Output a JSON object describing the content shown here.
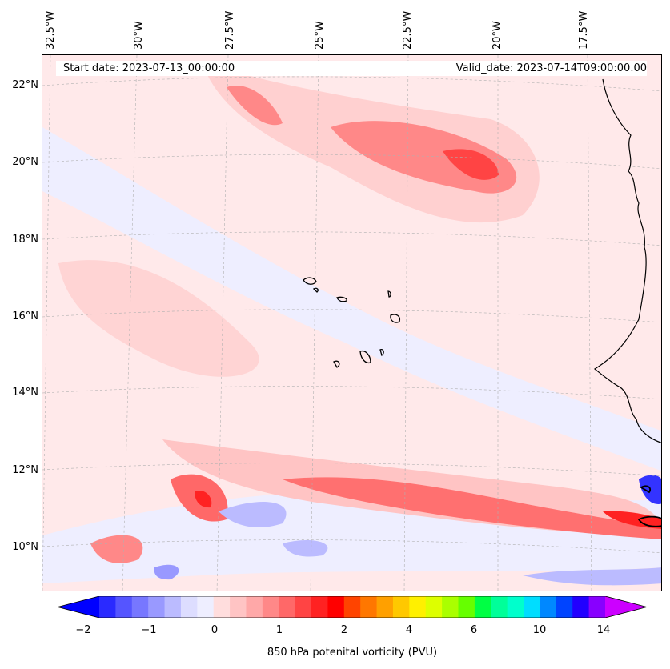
{
  "map": {
    "start_date": "Start date: 2023-07-13_00:00:00",
    "valid_date": "Valid_date: 2023-07-14T09:00:00.00",
    "lon_labels": [
      "32.5°W",
      "30°W",
      "27.5°W",
      "25°W",
      "22.5°W",
      "20°W",
      "17.5°W"
    ],
    "lat_labels": [
      "22°N",
      "20°N",
      "18°N",
      "16°N",
      "14°N",
      "12°N",
      "10°N"
    ],
    "region": "Cape Verde / West African coast"
  },
  "colorbar": {
    "label": "850 hPa potenital vorticity (PVU)",
    "ticks": [
      "−2",
      "−1",
      "0",
      "1",
      "2",
      "4",
      "6",
      "10",
      "14"
    ],
    "colors": [
      "#0000ff",
      "#2a2aff",
      "#5555ff",
      "#7777ff",
      "#9999ff",
      "#bbbbff",
      "#ddddff",
      "#eeeeff",
      "#ffdddd",
      "#ffc4c4",
      "#ffa8a8",
      "#ff8888",
      "#ff6868",
      "#ff4444",
      "#ff2222",
      "#ff0000",
      "#ff4400",
      "#ff7700",
      "#ffa000",
      "#ffc800",
      "#fff000",
      "#ddff00",
      "#aaff00",
      "#66ff00",
      "#00ff44",
      "#00ff99",
      "#00ffcc",
      "#00ddff",
      "#0088ff",
      "#0044ff",
      "#2200ff",
      "#8800ff",
      "#cc00ff"
    ]
  }
}
